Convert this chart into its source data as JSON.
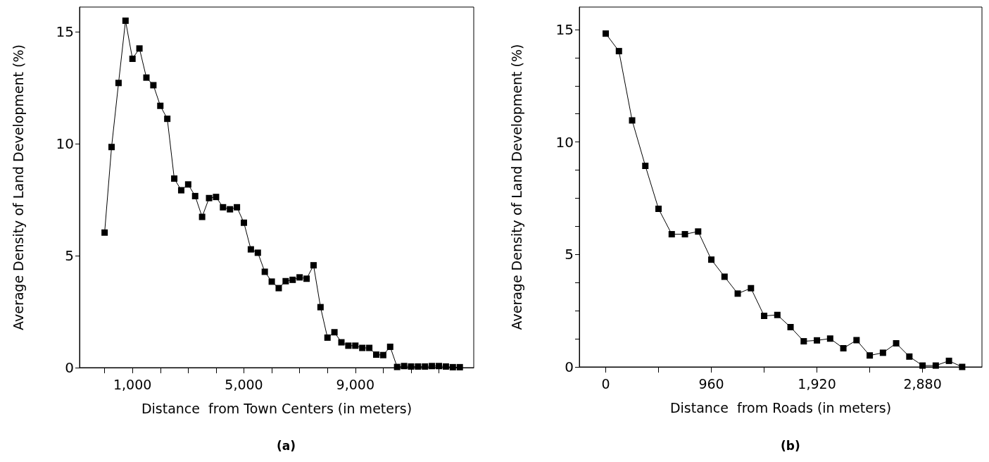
{
  "chart_data": [
    {
      "type": "line",
      "xlabel": "Distance  from Town Centers (in meters)",
      "ylabel": "Average Density of Land Development (%)",
      "annotations": [
        "(a)"
      ],
      "x": [
        0,
        250,
        500,
        750,
        1000,
        1250,
        1500,
        1750,
        2000,
        2250,
        2500,
        2750,
        3000,
        3250,
        3500,
        3750,
        4000,
        4250,
        4500,
        4750,
        5000,
        5250,
        5500,
        5750,
        6000,
        6250,
        6500,
        6750,
        7000,
        7250,
        7500,
        7750,
        8000,
        8250,
        8500,
        8750,
        9000,
        9250,
        9500,
        9750,
        10000,
        10250,
        10500,
        10750,
        11000,
        11250,
        11500,
        11750,
        12000,
        12250,
        12500,
        12750
      ],
      "values": [
        6.03,
        9.85,
        12.71,
        15.49,
        13.79,
        14.25,
        12.95,
        12.61,
        11.69,
        11.11,
        8.44,
        7.92,
        8.18,
        7.66,
        6.73,
        7.57,
        7.62,
        7.16,
        7.07,
        7.16,
        6.47,
        5.28,
        5.13,
        4.28,
        3.84,
        3.55,
        3.86,
        3.92,
        4.03,
        3.97,
        4.57,
        2.7,
        1.34,
        1.58,
        1.13,
        0.98,
        0.98,
        0.88,
        0.88,
        0.58,
        0.56,
        0.93,
        0.03,
        0.07,
        0.05,
        0.05,
        0.05,
        0.07,
        0.07,
        0.05,
        0.02,
        0.02
      ],
      "color": "#000000",
      "marker": "square",
      "line_style": "solid",
      "grid": false,
      "xlim": [
        -900,
        13250
      ],
      "xticks": [
        {
          "value": 0,
          "label": null
        },
        {
          "value": 1000,
          "label": "1,000"
        },
        {
          "value": 2000,
          "label": null
        },
        {
          "value": 3000,
          "label": null
        },
        {
          "value": 4000,
          "label": null
        },
        {
          "value": 5000,
          "label": "5,000"
        },
        {
          "value": 6000,
          "label": null
        },
        {
          "value": 7000,
          "label": null
        },
        {
          "value": 8000,
          "label": null
        },
        {
          "value": 9000,
          "label": "9,000"
        },
        {
          "value": 10000,
          "label": null
        },
        {
          "value": 11000,
          "label": null
        },
        {
          "value": 12000,
          "label": null
        }
      ],
      "ylim": [
        0,
        16.1
      ],
      "yticks": [
        0,
        5,
        10,
        15
      ]
    },
    {
      "type": "line",
      "xlabel": "Distance  from Roads (in meters)",
      "ylabel": "Average Density of Land Development (%)",
      "annotations": [
        "(b)"
      ],
      "x": [
        0,
        120,
        240,
        360,
        480,
        600,
        720,
        840,
        960,
        1080,
        1200,
        1320,
        1440,
        1560,
        1680,
        1800,
        1920,
        2040,
        2160,
        2280,
        2400,
        2520,
        2640,
        2760,
        2880,
        3000,
        3120,
        3240
      ],
      "values": [
        14.82,
        14.04,
        10.96,
        8.94,
        7.03,
        5.9,
        5.9,
        6.02,
        4.77,
        4.01,
        3.26,
        3.5,
        2.27,
        2.31,
        1.77,
        1.14,
        1.18,
        1.26,
        0.83,
        1.19,
        0.51,
        0.63,
        1.05,
        0.46,
        0.06,
        0.06,
        0.27,
        0.0
      ],
      "color": "#000000",
      "marker": "square",
      "line_style": "solid",
      "grid": false,
      "xlim": [
        -240,
        3420
      ],
      "xticks": [
        0,
        {
          "value": 480,
          "label": null
        },
        960,
        {
          "value": 1440,
          "label": null
        },
        {
          "value": 1920,
          "label": "1,920"
        },
        {
          "value": 2400,
          "label": null
        },
        {
          "value": 2880,
          "label": "2,880"
        }
      ],
      "ylim": [
        0,
        16
      ],
      "yticks": [
        0,
        {
          "value": 1.25,
          "label": null
        },
        {
          "value": 2.5,
          "label": null
        },
        {
          "value": 3.75,
          "label": null
        },
        5,
        {
          "value": 6.25,
          "label": null
        },
        {
          "value": 7.5,
          "label": null
        },
        {
          "value": 8.75,
          "label": null
        },
        10,
        {
          "value": 11.25,
          "label": null
        },
        {
          "value": 12.5,
          "label": null
        },
        {
          "value": 13.75,
          "label": null
        },
        15
      ]
    }
  ]
}
